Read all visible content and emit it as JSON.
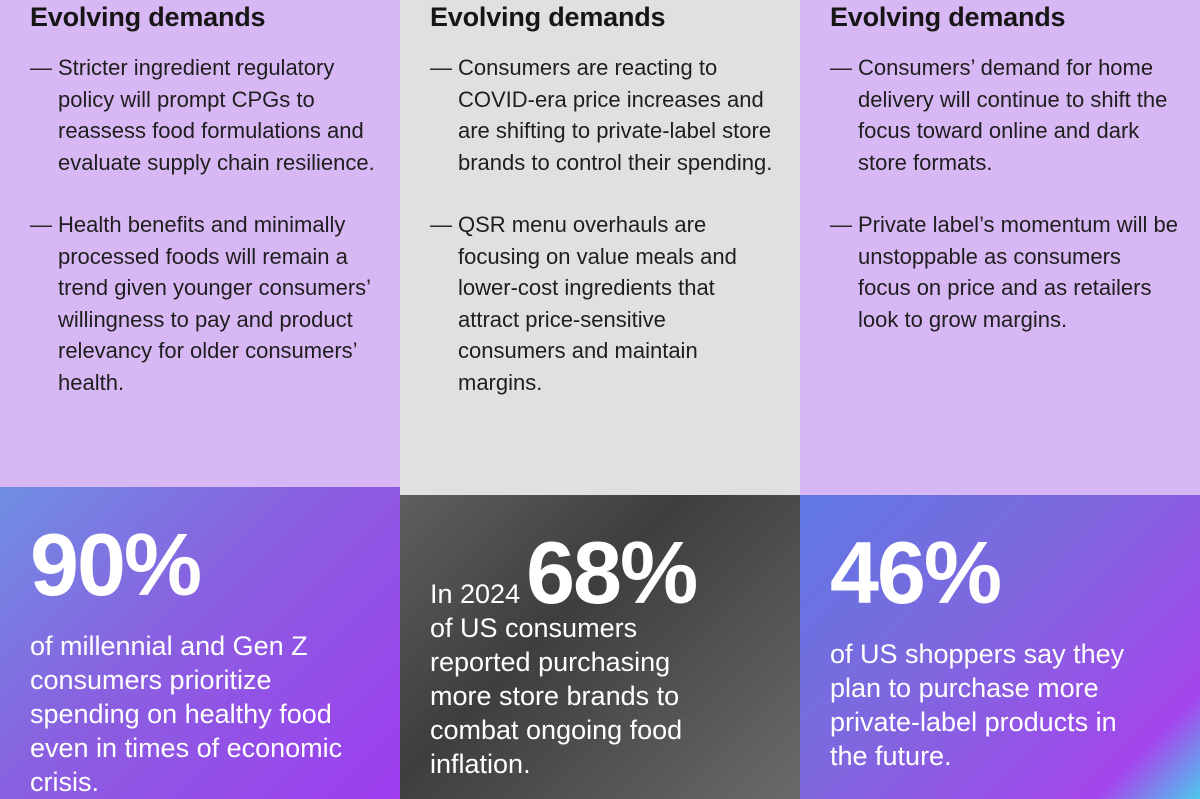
{
  "columns": [
    {
      "heading": "Evolving demands",
      "bullets": [
        "Stricter ingredient regulatory policy will prompt CPGs to reassess food formulations and evaluate supply chain resilience.",
        "Health benefits and minimally processed foods will remain a trend given younger consumers’ willingness to pay and product relevancy for older consumers’ health."
      ],
      "stat_prefix": "",
      "stat": "90%",
      "stat_description": "of millennial and Gen Z consumers prioritize spending on healthy food even in times of economic crisis."
    },
    {
      "heading": "Evolving demands",
      "bullets": [
        "Consumers are reacting to COVID-era price increases and are shifting to private-label store brands to control their spending.",
        "QSR menu overhauls are focusing on value meals and lower-cost ingredients that attract price-sensitive consumers and maintain margins."
      ],
      "stat_prefix": "In 2024",
      "stat": "68%",
      "stat_description": "of US consumers reported purchasing more store brands to combat ongoing food inflation."
    },
    {
      "heading": "Evolving demands",
      "bullets": [
        "Consumers’ demand for home delivery will continue to shift the focus toward online and dark store formats.",
        "Private label’s momentum will be unstoppable as consumers focus on price and as retailers look to grow margins."
      ],
      "stat_prefix": "",
      "stat": "46%",
      "stat_description": "of US shoppers say they plan to purchase more private-label products in the future."
    }
  ],
  "bullet_marker": "—",
  "colors": {
    "lavender_panel": "#d8b8f4",
    "gray_panel": "#e1e0e0",
    "purple_gradient_start": "#6f8fe3",
    "purple_gradient_end": "#9e3df0",
    "gray_gradient": "#4a4a4a",
    "text_dark": "#161616",
    "text_light": "#ffffff"
  }
}
